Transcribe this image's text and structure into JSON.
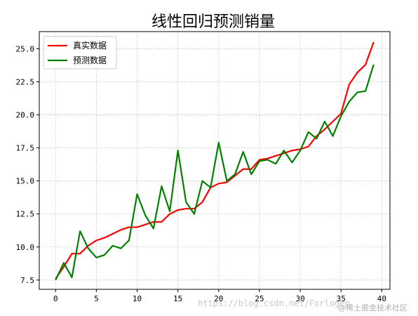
{
  "chart_data": {
    "type": "line",
    "title": "线性回归预测销量",
    "xlabel": "",
    "ylabel": "",
    "xlim": [
      -2.0,
      41.0
    ],
    "ylim": [
      6.8,
      26.3
    ],
    "xticks": [
      0,
      5,
      10,
      15,
      20,
      25,
      30,
      35,
      40
    ],
    "yticks": [
      7.5,
      10.0,
      12.5,
      15.0,
      17.5,
      20.0,
      22.5,
      25.0
    ],
    "ytick_labels": [
      "7.5",
      "10.0",
      "12.5",
      "15.0",
      "17.5",
      "20.0",
      "22.5",
      "25.0"
    ],
    "grid": true,
    "legend_position": "upper-left",
    "x": [
      0,
      1,
      2,
      3,
      4,
      5,
      6,
      7,
      8,
      9,
      10,
      11,
      12,
      13,
      14,
      15,
      16,
      17,
      18,
      19,
      20,
      21,
      22,
      23,
      24,
      25,
      26,
      27,
      28,
      29,
      30,
      31,
      32,
      33,
      34,
      35,
      36,
      37,
      38,
      39
    ],
    "series": [
      {
        "name": "真实数据",
        "color": "#ff0000",
        "values": [
          7.6,
          8.5,
          9.5,
          9.5,
          10.1,
          10.5,
          10.7,
          11.0,
          11.3,
          11.5,
          11.5,
          11.7,
          11.9,
          11.9,
          12.5,
          12.8,
          12.9,
          12.9,
          13.4,
          14.5,
          14.8,
          14.9,
          15.4,
          15.9,
          15.9,
          16.6,
          16.7,
          16.9,
          17.1,
          17.3,
          17.4,
          17.6,
          18.4,
          18.9,
          19.5,
          20.1,
          22.3,
          23.2,
          23.8,
          25.5
        ]
      },
      {
        "name": "预测数据",
        "color": "#008000",
        "values": [
          7.5,
          8.8,
          7.7,
          11.2,
          9.9,
          9.2,
          9.4,
          10.1,
          9.9,
          10.5,
          14.0,
          12.4,
          11.4,
          14.6,
          12.7,
          17.3,
          13.4,
          12.5,
          15.0,
          14.5,
          17.9,
          15.0,
          15.5,
          17.2,
          15.5,
          16.5,
          16.6,
          16.3,
          17.3,
          16.4,
          17.3,
          18.7,
          18.2,
          19.5,
          18.4,
          19.9,
          21.0,
          21.7,
          21.8,
          23.8
        ]
      }
    ]
  },
  "watermark": {
    "url": "https://blog.csdn.net/Forlogen",
    "brand": "@稀土掘金技术社区"
  }
}
